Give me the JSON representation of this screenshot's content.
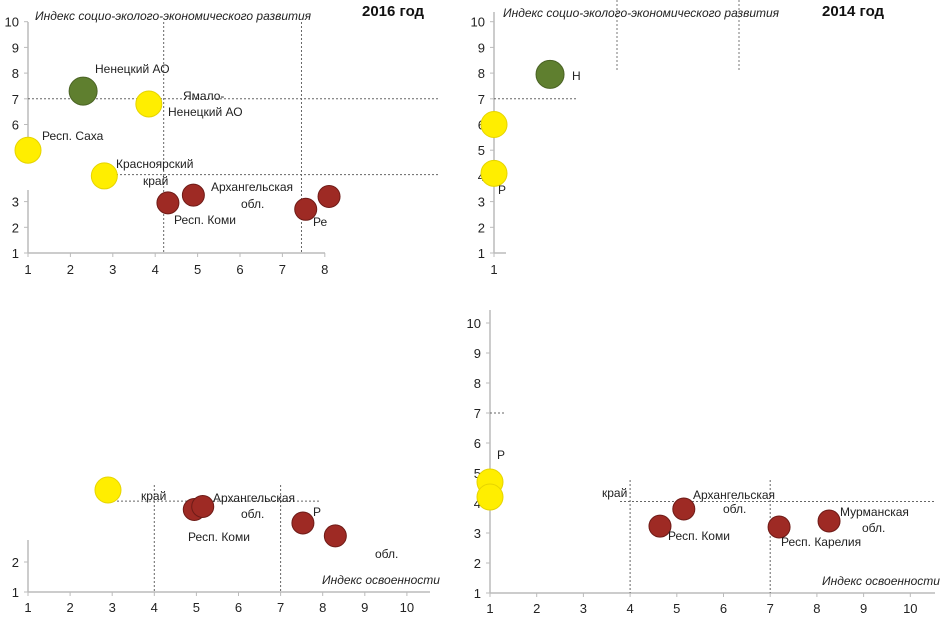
{
  "chart_data": [
    {
      "type": "scatter",
      "panel": "top-left",
      "title": "2016 год",
      "ylabel": "Индекс социо-эколого-экономического развития",
      "xlabel": "",
      "xticks": [
        "1",
        "2",
        "3",
        "4",
        "5",
        "6",
        "7",
        "8"
      ],
      "yticks": [
        "1",
        "2",
        "3",
        "6",
        "7",
        "8",
        "9",
        "10"
      ],
      "xlim": [
        1,
        8
      ],
      "ylim": [
        1,
        10
      ],
      "ref_lines": {
        "x": [
          4.2,
          7.45
        ],
        "y": [
          7,
          4.05
        ]
      },
      "points": [
        {
          "x": 2.3,
          "y": 7.3,
          "color": "#5f7f2f",
          "labels": [
            "Ненецкий АО"
          ]
        },
        {
          "x": 3.85,
          "y": 6.8,
          "color": "#ffee00",
          "labels": [
            "Ямало-",
            "Ненецкий АО"
          ]
        },
        {
          "x": 1.0,
          "y": 5.0,
          "color": "#ffee00",
          "labels": [
            "Респ. Саха"
          ]
        },
        {
          "x": 2.8,
          "y": 4.0,
          "color": "#ffee00",
          "labels": [
            "Красноярский",
            "край"
          ]
        },
        {
          "x": 4.3,
          "y": 2.95,
          "color": "#9e2a24",
          "labels": [
            "Респ. Коми"
          ]
        },
        {
          "x": 4.9,
          "y": 3.25,
          "color": "#9e2a24",
          "labels": [
            "Архангельская",
            "обл."
          ]
        },
        {
          "x": 7.55,
          "y": 2.7,
          "color": "#9e2a24",
          "labels": [
            "Ре"
          ]
        },
        {
          "x": 8.1,
          "y": 3.2,
          "color": "#9e2a24",
          "labels": []
        }
      ]
    },
    {
      "type": "scatter",
      "panel": "top-right",
      "title": "2014 год",
      "ylabel": "Индекс социо-эколого-экономического развития",
      "xticks": [
        "1"
      ],
      "yticks": [
        "1",
        "2",
        "3",
        "4",
        "5",
        "6",
        "7",
        "8",
        "9",
        "10"
      ],
      "xlim": [
        1,
        10
      ],
      "ylim": [
        1,
        10
      ],
      "ref_lines": {
        "y": [
          7
        ]
      },
      "points": [
        {
          "x": 2.2,
          "y": 7.95,
          "color": "#5f7f2f",
          "labels": [
            "Н"
          ]
        },
        {
          "x": 1.0,
          "y": 6.0,
          "color": "#ffee00",
          "labels": []
        },
        {
          "x": 1.0,
          "y": 4.1,
          "color": "#ffee00",
          "labels": [
            "Р"
          ]
        }
      ]
    },
    {
      "type": "scatter",
      "panel": "bottom-left",
      "xlabel": "Индекс освоенности",
      "xticks": [
        "1",
        "2",
        "3",
        "4",
        "5",
        "6",
        "7",
        "8",
        "9",
        "10"
      ],
      "yticks": [
        "1",
        "2"
      ],
      "xlim": [
        1,
        10
      ],
      "ref_lines": {
        "x": [
          4,
          7
        ],
        "y": [
          4.03
        ]
      },
      "points": [
        {
          "x": 2.9,
          "y": 4.4,
          "color": "#ffee00",
          "labels": [
            "край"
          ]
        },
        {
          "x": 4.95,
          "y": 3.75,
          "color": "#9e2a24",
          "labels": [
            "Респ. Коми"
          ]
        },
        {
          "x": 5.15,
          "y": 3.85,
          "color": "#9e2a24",
          "labels": [
            "Архангельская",
            "обл."
          ]
        },
        {
          "x": 7.53,
          "y": 3.3,
          "color": "#9e2a24",
          "labels": [
            "Р"
          ]
        },
        {
          "x": 8.3,
          "y": 2.87,
          "color": "#9e2a24",
          "labels": [
            "обл."
          ]
        }
      ]
    },
    {
      "type": "scatter",
      "panel": "bottom-right",
      "xlabel": "Индекс освоенности",
      "xticks": [
        "1",
        "2",
        "3",
        "4",
        "5",
        "6",
        "7",
        "8",
        "9",
        "10"
      ],
      "yticks": [
        "1",
        "2",
        "3",
        "4",
        "5",
        "6",
        "7",
        "8",
        "9",
        "10"
      ],
      "xlim": [
        1,
        10
      ],
      "ylim": [
        1,
        10
      ],
      "ref_lines": {
        "x": [
          4,
          7
        ],
        "y": [
          4.05,
          7
        ]
      },
      "points": [
        {
          "x": 1.0,
          "y": 4.7,
          "color": "#ffee00",
          "labels": [
            "Р"
          ]
        },
        {
          "x": 1.0,
          "y": 4.2,
          "color": "#ffee00",
          "labels": [
            "край"
          ]
        },
        {
          "x": 4.64,
          "y": 3.23,
          "color": "#9e2a24",
          "labels": [
            "Респ. Коми"
          ]
        },
        {
          "x": 5.15,
          "y": 3.8,
          "color": "#9e2a24",
          "labels": [
            "Архангельская",
            "обл."
          ]
        },
        {
          "x": 7.19,
          "y": 3.2,
          "color": "#9e2a24",
          "labels": [
            "Респ. Карелия"
          ]
        },
        {
          "x": 8.26,
          "y": 3.4,
          "color": "#9e2a24",
          "labels": [
            "Мурманская",
            "обл."
          ]
        }
      ]
    }
  ]
}
